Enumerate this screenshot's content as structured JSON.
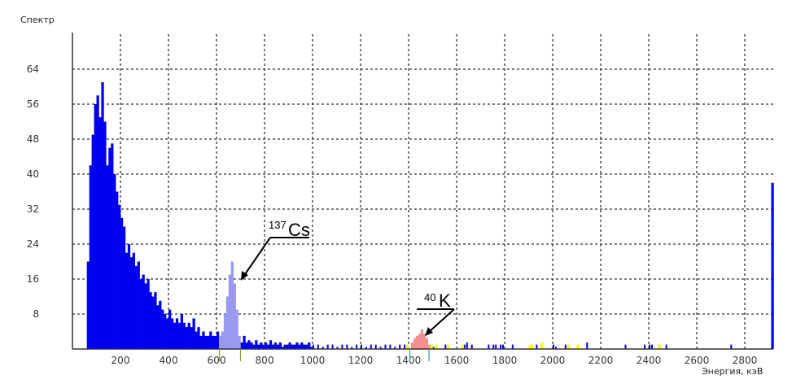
{
  "chart_data": {
    "type": "bar",
    "title": "Спектр",
    "xlabel": "Энергия, кэВ",
    "ylabel": "",
    "xlim": [
      0,
      2920
    ],
    "ylim": [
      0,
      72
    ],
    "grid": true,
    "xticks": [
      200,
      400,
      600,
      800,
      1000,
      1200,
      1400,
      1600,
      1800,
      2000,
      2200,
      2400,
      2600,
      2800
    ],
    "yticks": [
      8,
      16,
      24,
      32,
      40,
      48,
      56,
      64
    ],
    "bin_width_kev": 10,
    "colors": {
      "spectrum": "#0000ee",
      "cs_roi": "#9999f0",
      "k_roi": "#f59090",
      "background": "#ffff00",
      "grid": "#333333",
      "cs_marker": "#9a9a30",
      "k_marker": "#3aa0a0"
    },
    "series": [
      {
        "key": "spectrum",
        "color": "#0000ee",
        "points": [
          [
            60,
            20
          ],
          [
            70,
            42
          ],
          [
            80,
            49
          ],
          [
            90,
            56
          ],
          [
            100,
            58
          ],
          [
            110,
            53
          ],
          [
            120,
            61
          ],
          [
            130,
            52
          ],
          [
            140,
            42
          ],
          [
            150,
            46
          ],
          [
            160,
            47
          ],
          [
            170,
            40
          ],
          [
            180,
            36
          ],
          [
            190,
            33
          ],
          [
            200,
            30
          ],
          [
            210,
            28
          ],
          [
            220,
            22
          ],
          [
            230,
            24
          ],
          [
            240,
            21
          ],
          [
            250,
            22
          ],
          [
            260,
            19
          ],
          [
            270,
            20
          ],
          [
            280,
            16
          ],
          [
            290,
            17
          ],
          [
            300,
            15
          ],
          [
            310,
            16
          ],
          [
            320,
            13
          ],
          [
            330,
            12
          ],
          [
            340,
            13
          ],
          [
            350,
            10
          ],
          [
            360,
            11
          ],
          [
            370,
            9
          ],
          [
            380,
            8
          ],
          [
            390,
            7
          ],
          [
            400,
            9
          ],
          [
            410,
            7
          ],
          [
            420,
            6
          ],
          [
            430,
            7
          ],
          [
            440,
            6
          ],
          [
            450,
            8
          ],
          [
            460,
            6
          ],
          [
            470,
            5
          ],
          [
            480,
            6
          ],
          [
            490,
            5
          ],
          [
            500,
            7
          ],
          [
            510,
            4
          ],
          [
            520,
            5
          ],
          [
            530,
            3
          ],
          [
            540,
            4
          ],
          [
            550,
            3
          ],
          [
            560,
            3
          ],
          [
            570,
            4
          ],
          [
            580,
            3
          ],
          [
            590,
            3
          ],
          [
            600,
            4
          ],
          [
            700,
            1.5
          ],
          [
            710,
            3
          ],
          [
            720,
            1.5
          ],
          [
            730,
            2
          ],
          [
            740,
            1.5
          ],
          [
            750,
            1
          ],
          [
            760,
            2
          ],
          [
            770,
            1
          ],
          [
            780,
            1.5
          ],
          [
            790,
            1
          ],
          [
            800,
            1.5
          ],
          [
            810,
            1
          ],
          [
            820,
            2
          ],
          [
            830,
            1
          ],
          [
            840,
            1.5
          ],
          [
            850,
            1
          ],
          [
            860,
            1.5
          ],
          [
            870,
            0.5
          ],
          [
            880,
            1
          ],
          [
            890,
            1
          ],
          [
            900,
            1.5
          ],
          [
            910,
            1
          ],
          [
            920,
            1
          ],
          [
            930,
            1.5
          ],
          [
            940,
            1
          ],
          [
            950,
            1.5
          ],
          [
            960,
            1
          ],
          [
            970,
            1
          ],
          [
            980,
            1.5
          ],
          [
            990,
            0.5
          ],
          [
            1000,
            1
          ],
          [
            1020,
            1
          ],
          [
            1040,
            0.5
          ],
          [
            1060,
            1
          ],
          [
            1080,
            1
          ],
          [
            1100,
            0.5
          ],
          [
            1120,
            1
          ],
          [
            1140,
            1
          ],
          [
            1160,
            0.5
          ],
          [
            1180,
            1
          ],
          [
            1200,
            1
          ],
          [
            1220,
            0.5
          ],
          [
            1240,
            1
          ],
          [
            1260,
            1
          ],
          [
            1280,
            0.5
          ],
          [
            1300,
            1
          ],
          [
            1320,
            1
          ],
          [
            1340,
            0.5
          ],
          [
            1360,
            1
          ],
          [
            1380,
            1
          ],
          [
            1500,
            0.5
          ],
          [
            1550,
            1
          ],
          [
            1630,
            1
          ],
          [
            1640,
            1.5
          ],
          [
            1660,
            1
          ],
          [
            1730,
            1
          ],
          [
            1750,
            1
          ],
          [
            1760,
            1
          ],
          [
            1780,
            1
          ],
          [
            1790,
            1
          ],
          [
            1830,
            1
          ],
          [
            1930,
            1
          ],
          [
            1950,
            1
          ],
          [
            2000,
            1
          ],
          [
            2010,
            0.5
          ],
          [
            2050,
            1
          ],
          [
            2140,
            1.5
          ],
          [
            2300,
            1
          ],
          [
            2380,
            1
          ],
          [
            2400,
            1
          ],
          [
            2410,
            1
          ],
          [
            2440,
            1
          ],
          [
            2470,
            1
          ],
          [
            2740,
            1
          ],
          [
            2910,
            38
          ]
        ]
      },
      {
        "key": "cs_roi",
        "color": "#9999f0",
        "points": [
          [
            610,
            3
          ],
          [
            620,
            4
          ],
          [
            630,
            8
          ],
          [
            640,
            12
          ],
          [
            650,
            17
          ],
          [
            660,
            20
          ],
          [
            670,
            15
          ],
          [
            680,
            9
          ],
          [
            690,
            3
          ]
        ]
      },
      {
        "key": "k_roi",
        "color": "#f59090",
        "points": [
          [
            1410,
            1.5
          ],
          [
            1420,
            2.5
          ],
          [
            1430,
            3
          ],
          [
            1440,
            3.5
          ],
          [
            1450,
            4.5
          ],
          [
            1460,
            3.5
          ],
          [
            1470,
            2.5
          ],
          [
            1480,
            1
          ]
        ]
      },
      {
        "key": "background",
        "color": "#ffff00",
        "points": [
          [
            1390,
            1
          ],
          [
            1490,
            1
          ],
          [
            1510,
            1
          ],
          [
            1560,
            1
          ],
          [
            1620,
            1
          ],
          [
            1900,
            1
          ],
          [
            1910,
            1
          ],
          [
            1950,
            1.5
          ],
          [
            2060,
            1
          ],
          [
            2100,
            1
          ],
          [
            2440,
            1
          ]
        ]
      }
    ],
    "roi_markers": [
      {
        "from": 612,
        "to": 700,
        "color": "#9a9a30"
      },
      {
        "from": 1405,
        "to": 1485,
        "color": "#3aa0a0"
      }
    ],
    "annotations": [
      {
        "mass": "137",
        "element": "Cs"
      },
      {
        "mass": "40",
        "element": "K"
      }
    ]
  }
}
